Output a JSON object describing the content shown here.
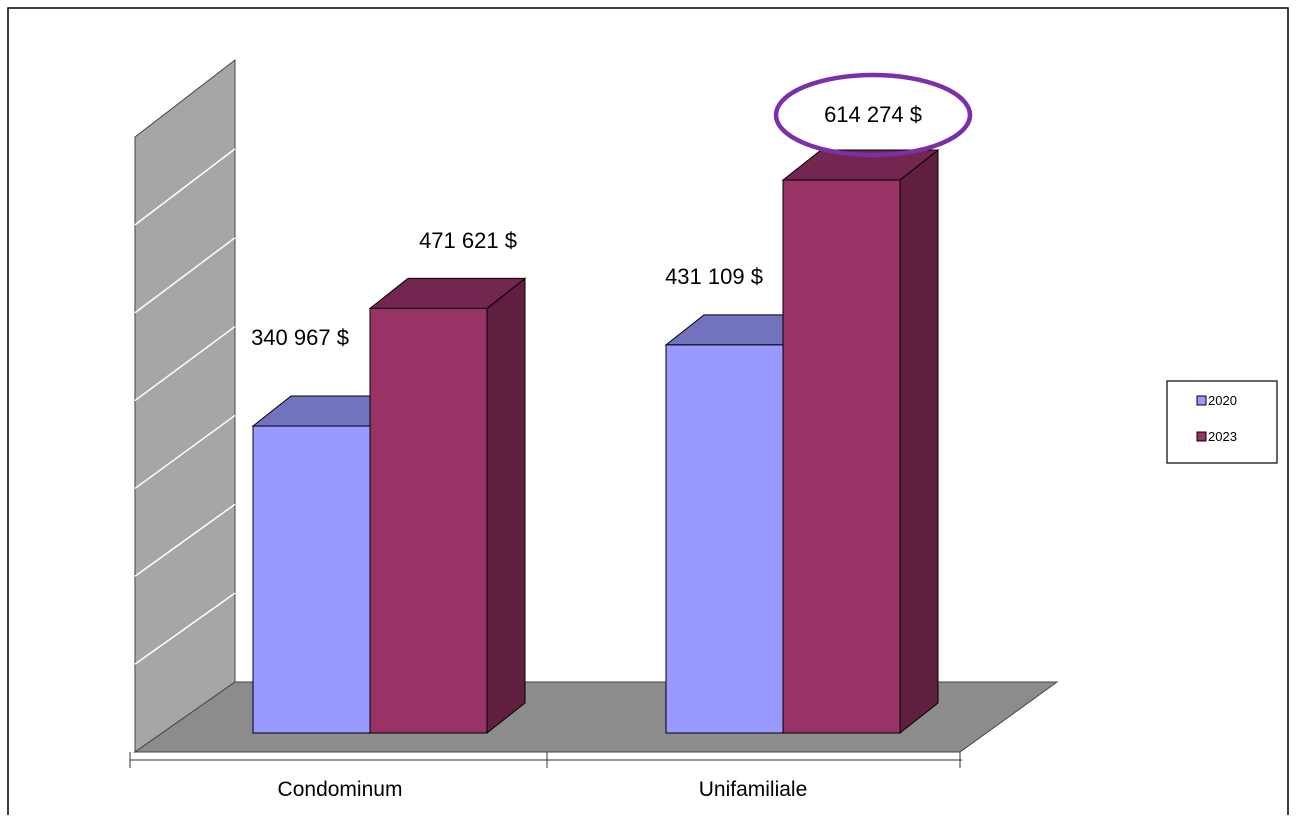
{
  "chart_data": {
    "type": "bar",
    "title": "",
    "xlabel": "",
    "ylabel": "",
    "categories": [
      "Condominum",
      "Unifamiliale"
    ],
    "series": [
      {
        "name": "2020",
        "values": [
          340967,
          431109
        ],
        "color": "#9999FF",
        "top_color": "#7272BF",
        "side_color": "#4C4C80"
      },
      {
        "name": "2023",
        "values": [
          471621,
          614274
        ],
        "color": "#993366",
        "top_color": "#732650",
        "side_color": "#611F3F"
      }
    ],
    "data_labels": [
      [
        "340 967 $",
        "431 109 $"
      ],
      [
        "471 621 $",
        "614 274 $"
      ]
    ],
    "highlighted_label": "614 274 $",
    "highlight_color": "#7B2FA8",
    "ylim": [
      0,
      700000
    ],
    "grid": true,
    "legend_position": "right",
    "view": "3d-column",
    "walls_color": "#A6A6A6",
    "floor_color": "#8C8C8C"
  }
}
